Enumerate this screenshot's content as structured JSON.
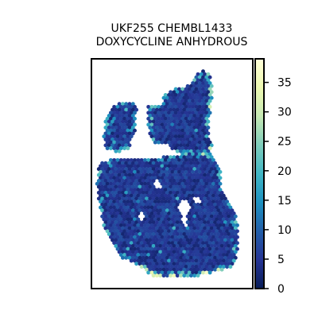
{
  "chart_data": {
    "type": "heatmap",
    "subtype": "spatial-hexbin",
    "title_lines": [
      "UKF255 CHEMBL1433",
      "DOXYCYCLINE ANHYDROUS"
    ],
    "xlabel": "",
    "ylabel": "",
    "axis_ticks_visible": false,
    "grid": false,
    "colormap": "YlGnBu",
    "colorbar": {
      "location": "right",
      "vmin": 0,
      "vmax": 39,
      "ticks": [
        0,
        5,
        10,
        15,
        20,
        25,
        30,
        35
      ],
      "tick_labels": [
        "0",
        "5",
        "10",
        "15",
        "20",
        "25",
        "30",
        "35"
      ]
    },
    "value_summary": {
      "typical_range": [
        2,
        10
      ],
      "elevated_edges_range": [
        15,
        38
      ]
    }
  }
}
